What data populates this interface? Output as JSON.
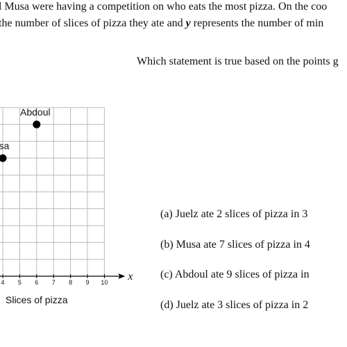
{
  "intro": {
    "line1": "l Musa were having a competition on who eats the most pizza. On the coo",
    "line2": [
      "the number of slices of pizza they ate and ",
      "y",
      " represents the number of min"
    ]
  },
  "question": "Which statement is true based on the points g",
  "graph": {
    "xlim": [
      0,
      10
    ],
    "ylim": [
      0,
      10
    ],
    "xticks": [
      4,
      5,
      6,
      7,
      8,
      9,
      10
    ],
    "x_axis_letter": "x",
    "x_label": "Slices of pizza",
    "points": [
      {
        "label": "Abdoul",
        "x": 6,
        "y": 9
      },
      {
        "label": "usa",
        "x": 4,
        "y": 7
      }
    ]
  },
  "options": [
    "(a) Juelz ate 2 slices of pizza in 3",
    "(b) Musa ate 7 slices of pizza in 4",
    "(c) Abdoul ate 9 slices of pizza in",
    "(d) Juelz ate 3 slices of pizza in 2"
  ]
}
